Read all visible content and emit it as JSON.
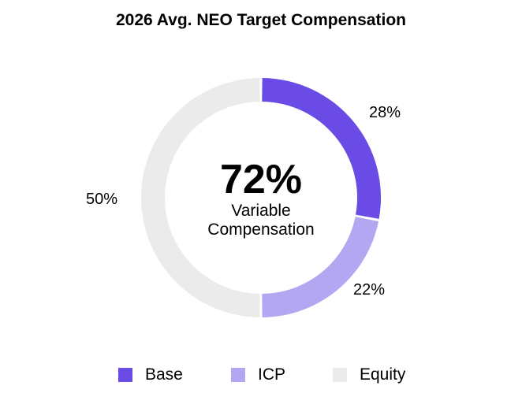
{
  "chart_data": {
    "type": "pie",
    "title": "2026 Avg. NEO Target Compensation",
    "categories": [
      "Base",
      "ICP",
      "Equity"
    ],
    "values": [
      28,
      22,
      50
    ],
    "labels": [
      "28%",
      "22%",
      "50%"
    ],
    "colors": [
      "#6a4be5",
      "#b3a7f2",
      "#ebebeb"
    ],
    "center_value": "72%",
    "center_caption": "Variable Compensation",
    "legend_position": "bottom"
  }
}
